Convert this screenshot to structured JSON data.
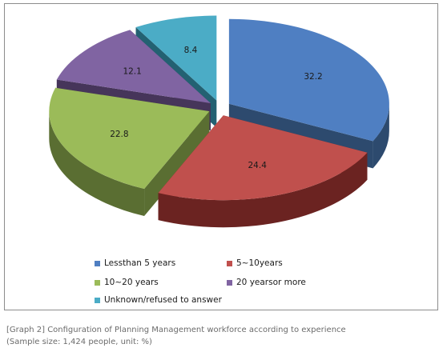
{
  "chart_data": {
    "type": "pie",
    "categories": [
      "Lessthan 5 years",
      "5~10years",
      "10~20 years",
      "20 yearsor more",
      "Unknown/refused to answer"
    ],
    "values": [
      32.2,
      24.4,
      22.8,
      12.1,
      8.4
    ],
    "value_labels": [
      "32.2",
      "24.4",
      "22.8",
      "12.1",
      "8.4"
    ],
    "colors": {
      "top": [
        "#4f7fc2",
        "#c0504d",
        "#9bbb59",
        "#8064a2",
        "#4bacc6"
      ],
      "side": [
        "#2d4a6e",
        "#6b2321",
        "#5a6e32",
        "#46355a",
        "#236172"
      ]
    },
    "exploded": true,
    "three_d": true,
    "legend_position": "bottom"
  },
  "caption": {
    "line1": "[Graph 2] Configuration of Planning Management workforce according to experience",
    "line2": "(Sample size: 1,424 people, unit: %)"
  }
}
